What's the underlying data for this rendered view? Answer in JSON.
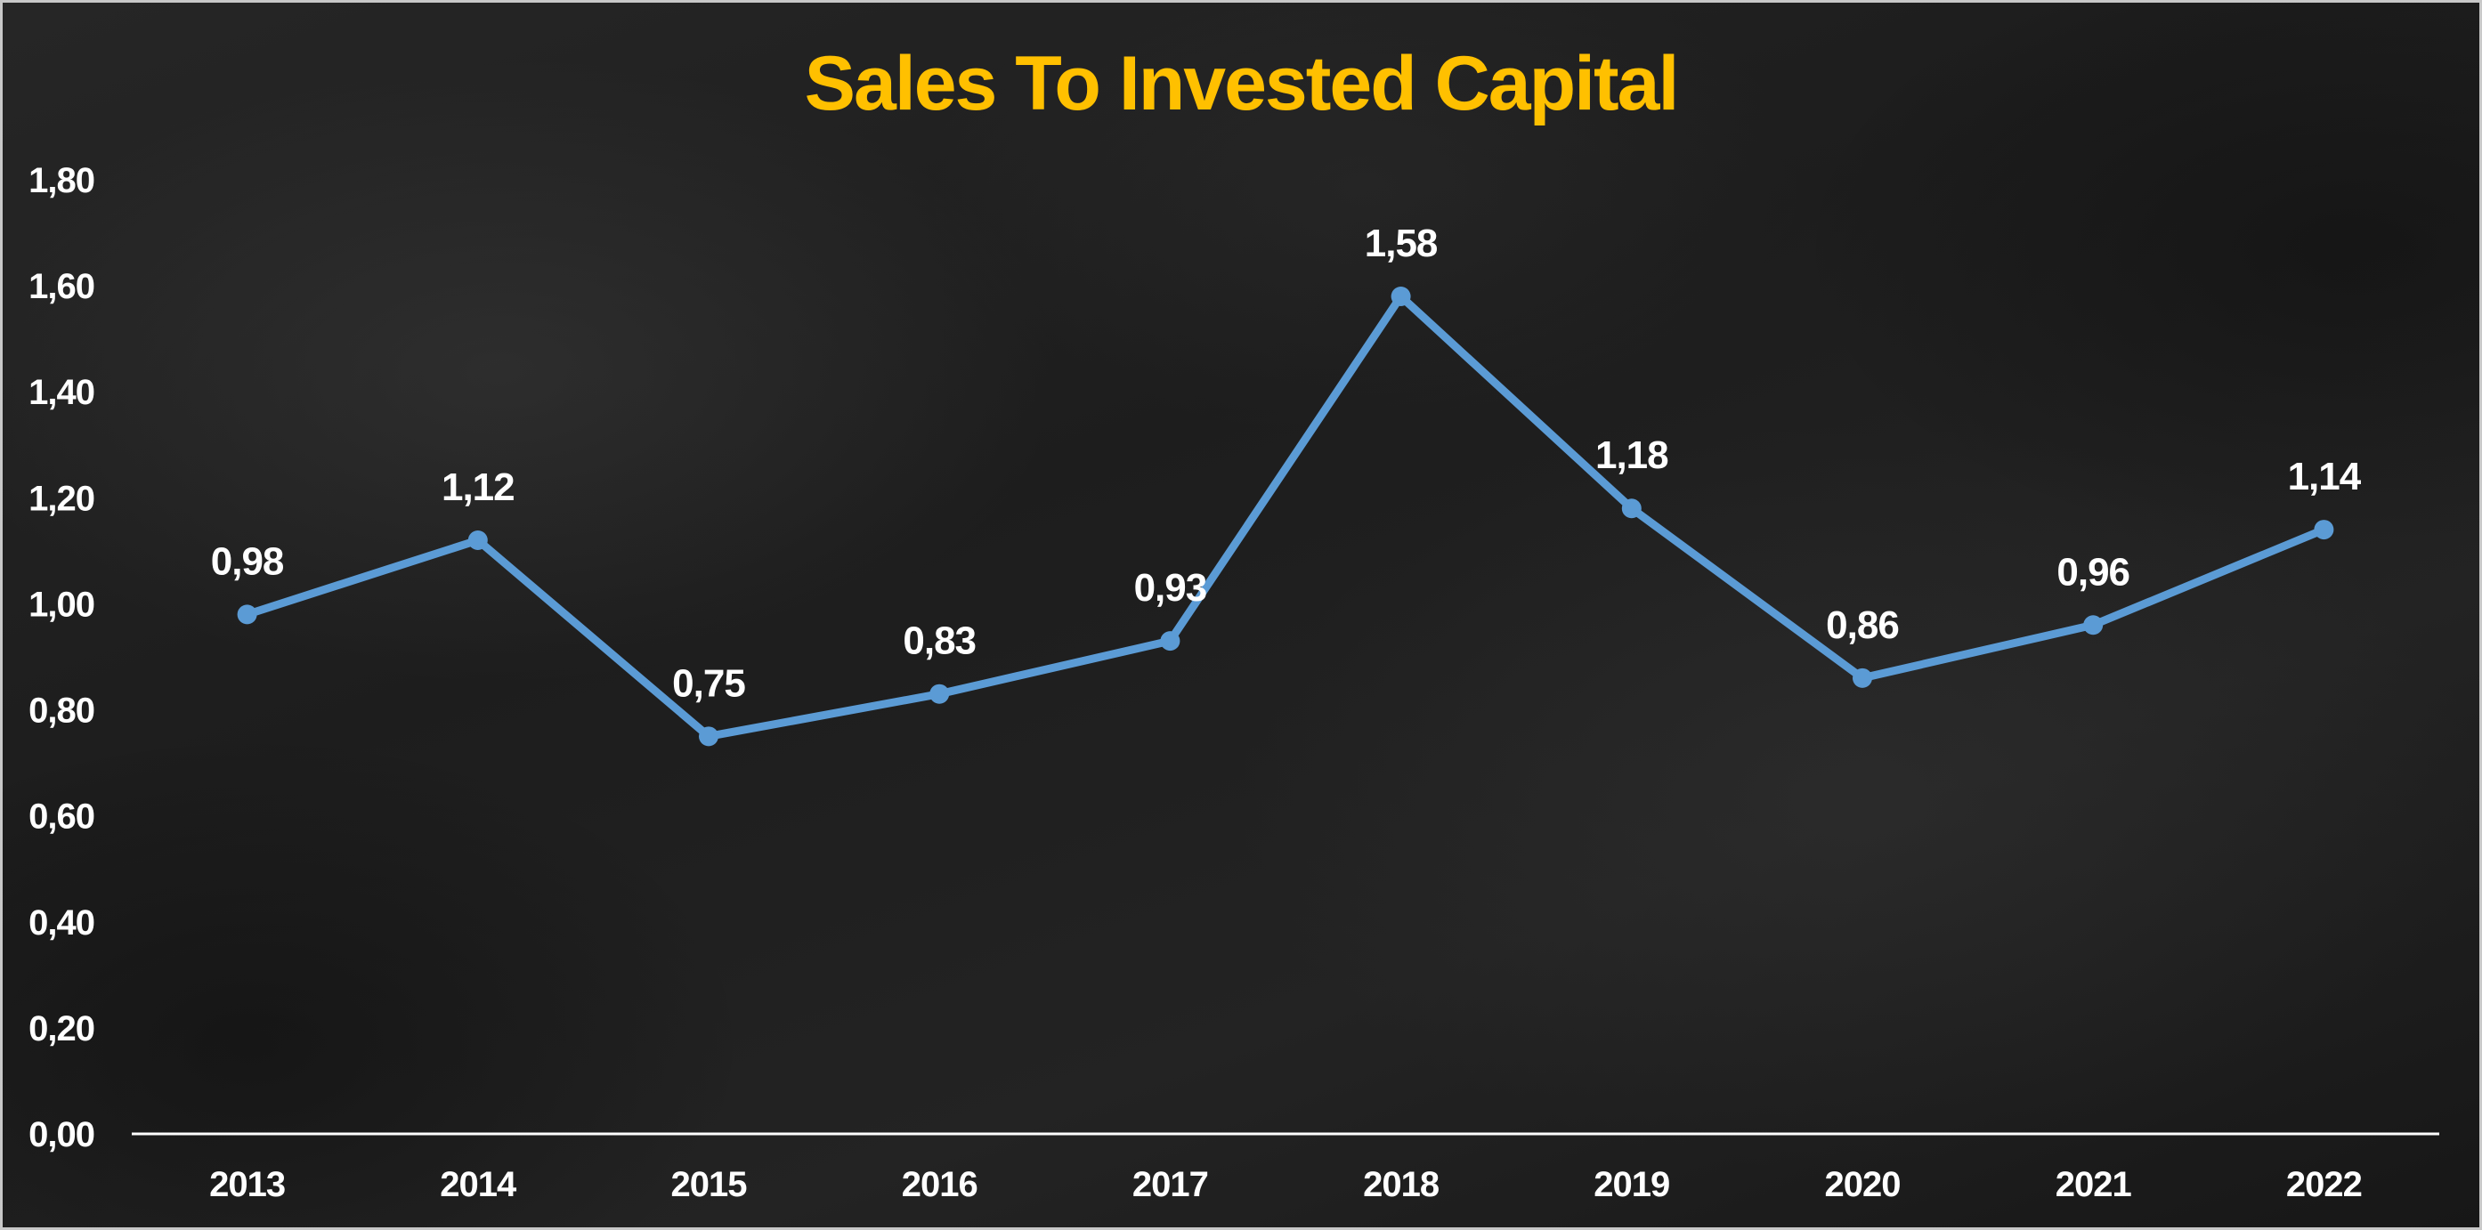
{
  "chart_data": {
    "type": "line",
    "title": "Sales To Invested Capital",
    "xlabel": "",
    "ylabel": "",
    "categories": [
      "2013",
      "2014",
      "2015",
      "2016",
      "2017",
      "2018",
      "2019",
      "2020",
      "2021",
      "2022"
    ],
    "series": [
      {
        "values": [
          0.98,
          1.12,
          0.75,
          0.83,
          0.93,
          1.58,
          1.18,
          0.86,
          0.96,
          1.14
        ],
        "data_labels": [
          "0,98",
          "1,12",
          "0,75",
          "0,83",
          "0,93",
          "1,58",
          "1,18",
          "0,86",
          "0,96",
          "1,14"
        ],
        "color": "#5b9bd5"
      }
    ],
    "ylim": [
      0,
      1.8
    ],
    "y_ticks": [
      0,
      0.2,
      0.4,
      0.6,
      0.8,
      1.0,
      1.2,
      1.4,
      1.6,
      1.8
    ],
    "y_tick_labels": [
      "0,00",
      "0,20",
      "0,40",
      "0,60",
      "0,80",
      "1,00",
      "1,20",
      "1,40",
      "1,60",
      "1,80"
    ],
    "grid": false,
    "legend": "none",
    "colors": {
      "title": "#ffc000",
      "line": "#5b9bd5",
      "text": "#ffffff",
      "axis": "#ffffff"
    }
  }
}
